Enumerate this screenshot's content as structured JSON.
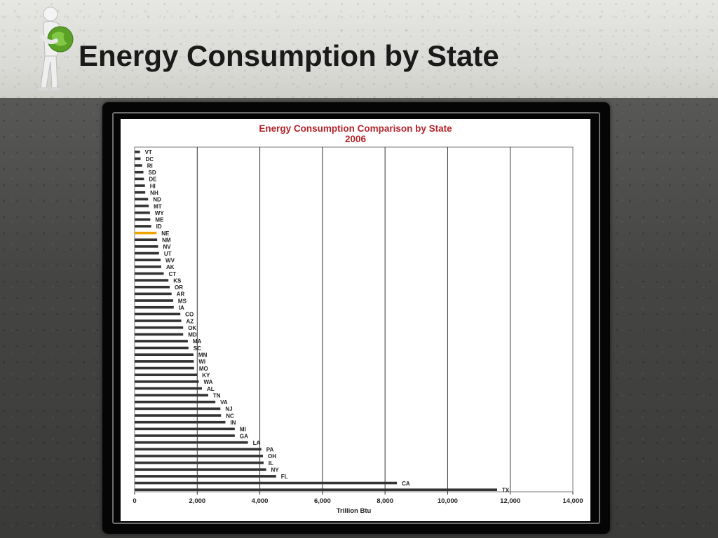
{
  "slide": {
    "title": "Energy Consumption by State"
  },
  "colors": {
    "bar": "#333333",
    "highlight": "#f0a400",
    "chart_title": "#b3242b"
  },
  "chart_data": {
    "type": "bar",
    "orientation": "horizontal",
    "title": "Energy Consumption Comparison by State",
    "subtitle": "2006",
    "xlabel": "Trillion Btu",
    "ylabel": "",
    "xlim": [
      0,
      14000
    ],
    "x_ticks": [
      "0",
      "2,000",
      "4,000",
      "6,000",
      "8,000",
      "10,000",
      "12,000",
      "14,000"
    ],
    "grid": "vertical",
    "legend": "none",
    "highlighted_category": "NE",
    "categories": [
      "VT",
      "DC",
      "RI",
      "SD",
      "DE",
      "HI",
      "NH",
      "ND",
      "MT",
      "WY",
      "ME",
      "ID",
      "NE",
      "NM",
      "NV",
      "UT",
      "WV",
      "AK",
      "CT",
      "KS",
      "OR",
      "AR",
      "MS",
      "IA",
      "CO",
      "AZ",
      "OK",
      "MD",
      "MA",
      "SC",
      "MN",
      "WI",
      "MO",
      "KY",
      "WA",
      "AL",
      "TN",
      "VA",
      "NJ",
      "NC",
      "IN",
      "MI",
      "GA",
      "LA",
      "PA",
      "OH",
      "IL",
      "NY",
      "FL",
      "CA",
      "TX"
    ],
    "values": [
      170,
      190,
      240,
      280,
      300,
      330,
      340,
      430,
      450,
      490,
      500,
      530,
      700,
      720,
      750,
      780,
      830,
      850,
      930,
      1080,
      1120,
      1180,
      1230,
      1250,
      1460,
      1490,
      1550,
      1550,
      1700,
      1720,
      1880,
      1890,
      1900,
      2000,
      2050,
      2150,
      2350,
      2580,
      2740,
      2760,
      2900,
      3200,
      3200,
      3620,
      4050,
      4100,
      4120,
      4200,
      4520,
      8380,
      11580
    ]
  }
}
